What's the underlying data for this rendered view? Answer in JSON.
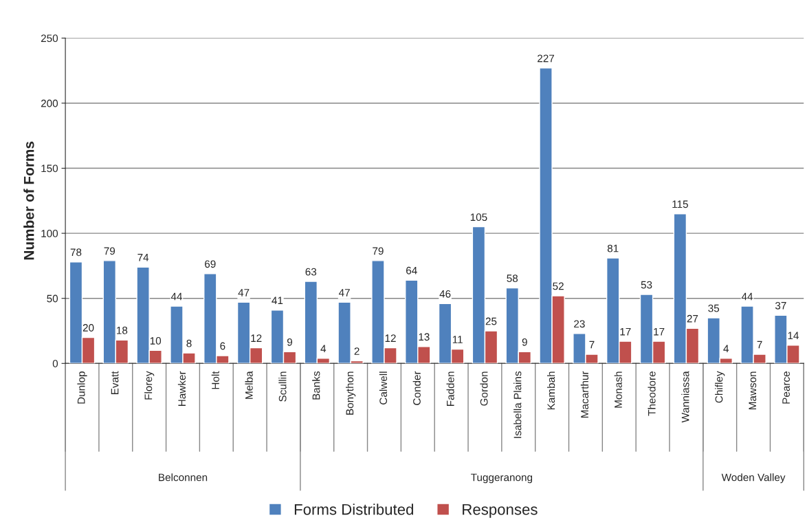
{
  "chart_data": {
    "type": "bar",
    "ylabel": "Number of Forms",
    "categories": [
      "Dunlop",
      "Evatt",
      "Florey",
      "Hawker",
      "Holt",
      "Melba",
      "Scullin",
      "Banks",
      "Bonython",
      "Calwell",
      "Conder",
      "Fadden",
      "Gordon",
      "Isabella Plains",
      "Kambah",
      "Macarthur",
      "Monash",
      "Theodore",
      "Wanniassa",
      "Chifley",
      "Mawson",
      "Pearce"
    ],
    "series": [
      {
        "name": "Forms Distributed",
        "color": "#4f81bd",
        "values": [
          78,
          79,
          74,
          44,
          69,
          47,
          41,
          63,
          47,
          79,
          64,
          46,
          105,
          58,
          227,
          23,
          81,
          53,
          115,
          35,
          44,
          37
        ]
      },
      {
        "name": "Responses",
        "color": "#c0504d",
        "values": [
          20,
          18,
          10,
          8,
          6,
          12,
          9,
          4,
          2,
          12,
          13,
          11,
          25,
          9,
          52,
          7,
          17,
          17,
          27,
          4,
          7,
          14
        ]
      }
    ],
    "annotations": [
      "Belconnen",
      "Tuggeranong",
      "Woden Valley"
    ],
    "ylim": [
      0,
      250
    ],
    "yticks": [
      0,
      50,
      100,
      150,
      200,
      250
    ],
    "grid": "y",
    "legend": "bottom",
    "data_labels": true
  }
}
